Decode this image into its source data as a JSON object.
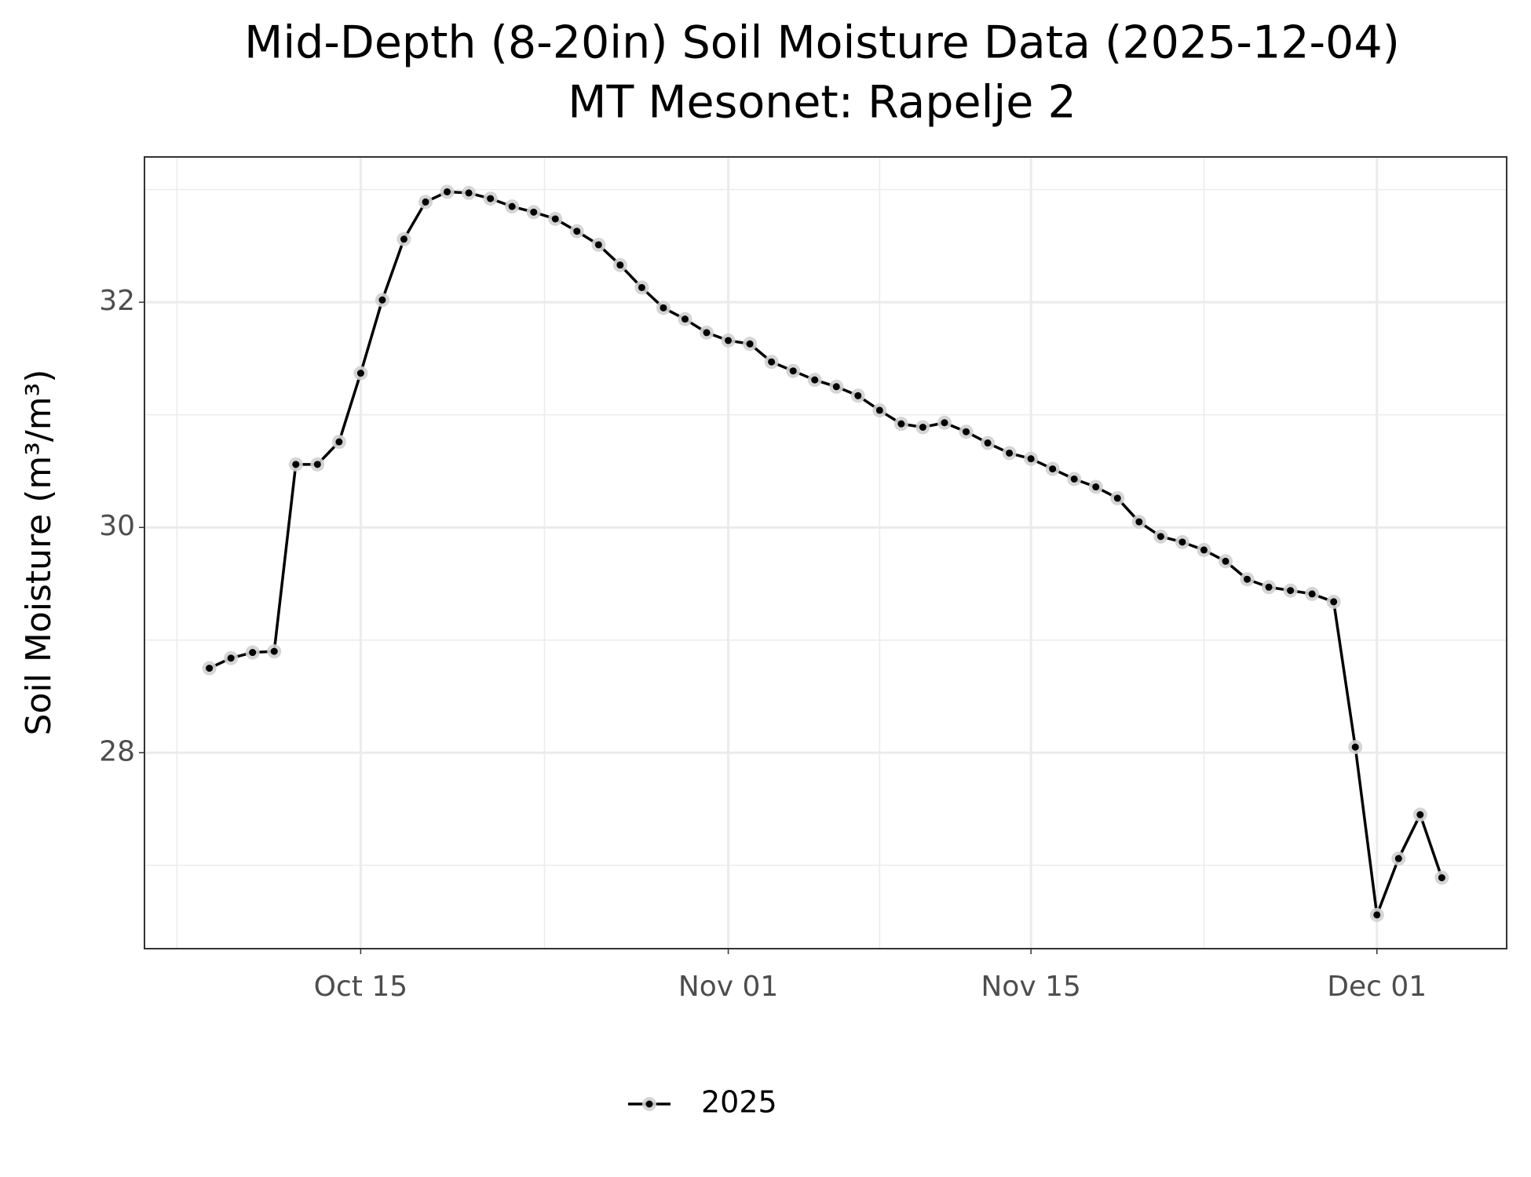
{
  "chart_data": {
    "type": "line",
    "title": "Mid-Depth (8-20in) Soil Moisture Data (2025-12-04)",
    "subtitle": "MT Mesonet: Rapelje 2",
    "y_label": "Soil Moisture (m³/m³)",
    "x": [
      "10-08",
      "10-09",
      "10-10",
      "10-11",
      "10-12",
      "10-13",
      "10-14",
      "10-15",
      "10-16",
      "10-17",
      "10-18",
      "10-19",
      "10-20",
      "10-21",
      "10-22",
      "10-23",
      "10-24",
      "10-25",
      "10-26",
      "10-27",
      "10-28",
      "10-29",
      "10-30",
      "10-31",
      "11-01",
      "11-02",
      "11-03",
      "11-04",
      "11-05",
      "11-06",
      "11-07",
      "11-08",
      "11-09",
      "11-10",
      "11-11",
      "11-12",
      "11-13",
      "11-14",
      "11-15",
      "11-16",
      "11-17",
      "11-18",
      "11-19",
      "11-20",
      "11-21",
      "11-22",
      "11-23",
      "11-24",
      "11-25",
      "11-26",
      "11-27",
      "11-28",
      "11-29",
      "11-30",
      "12-01",
      "12-02",
      "12-03",
      "12-04"
    ],
    "series": [
      {
        "name": "2025",
        "color": "#000000",
        "values": [
          28.75,
          28.84,
          28.89,
          28.9,
          30.56,
          30.56,
          30.76,
          31.37,
          32.02,
          32.56,
          32.89,
          32.98,
          32.97,
          32.92,
          32.85,
          32.8,
          32.74,
          32.63,
          32.51,
          32.33,
          32.13,
          31.95,
          31.85,
          31.73,
          31.66,
          31.63,
          31.47,
          31.39,
          31.31,
          31.25,
          31.17,
          31.04,
          30.92,
          30.89,
          30.93,
          30.85,
          30.75,
          30.66,
          30.61,
          30.52,
          30.43,
          30.36,
          30.26,
          30.05,
          29.92,
          29.87,
          29.8,
          29.7,
          29.54,
          29.47,
          29.44,
          29.41,
          29.34,
          28.05,
          26.56,
          27.06,
          27.45,
          26.89
        ]
      }
    ],
    "xlim": [
      "10-05",
      "12-07"
    ],
    "xticks": [
      {
        "value": "10-15",
        "label": "Oct 15"
      },
      {
        "value": "11-01",
        "label": "Nov 01"
      },
      {
        "value": "11-15",
        "label": "Nov 15"
      },
      {
        "value": "12-01",
        "label": "Dec 01"
      }
    ],
    "ylim": [
      26.26,
      33.29
    ],
    "yticks": [
      28,
      30,
      32
    ],
    "grid": true,
    "legend": "bottom"
  }
}
